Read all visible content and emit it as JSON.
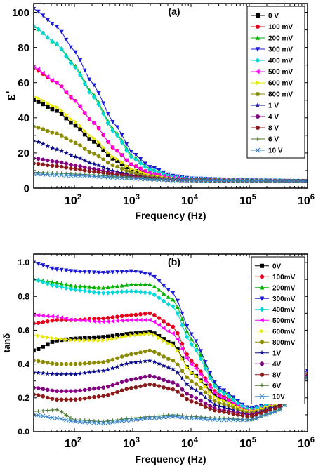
{
  "chart_data": [
    {
      "type": "line",
      "panel_label": "(a)",
      "xlabel": "Frequency (Hz)",
      "ylabel": "ε'",
      "xscale": "log",
      "xlim": [
        20,
        1000000
      ],
      "ylim": [
        0,
        105
      ],
      "x_ticks": [
        100,
        1000,
        10000,
        100000,
        1000000
      ],
      "x_tick_labels": [
        {
          "base": "10",
          "exp": "2"
        },
        {
          "base": "10",
          "exp": "3"
        },
        {
          "base": "10",
          "exp": "4"
        },
        {
          "base": "10",
          "exp": "5"
        },
        {
          "base": "10",
          "exp": "6"
        }
      ],
      "y_ticks": [
        0,
        20,
        40,
        60,
        80,
        100
      ],
      "y_tick_labels": [
        "0",
        "20",
        "40",
        "60",
        "80",
        "100"
      ],
      "legend_position": "top-right",
      "x": [
        20,
        50,
        100,
        200,
        500,
        1000,
        2000,
        5000,
        10000,
        100000,
        1000000
      ],
      "series": [
        {
          "name": "0 V",
          "color": "#000000",
          "marker": "square",
          "values": [
            50,
            44,
            36,
            27,
            16,
            10,
            7,
            5.2,
            4.8,
            4.2,
            4.0
          ]
        },
        {
          "name": "100 mV",
          "color": "#e8001c",
          "marker": "circle",
          "values": [
            68,
            60,
            50,
            38,
            22,
            13,
            8.5,
            5.8,
            5.0,
            4.3,
            4.0
          ]
        },
        {
          "name": "200 mV",
          "color": "#00b200",
          "marker": "triangle-up",
          "values": [
            92,
            82,
            70,
            54,
            32,
            18,
            11,
            6.5,
            5.4,
            4.4,
            4.1
          ]
        },
        {
          "name": "300 mV",
          "color": "#1b1bd6",
          "marker": "triangle-down",
          "values": [
            102,
            92,
            78,
            60,
            36,
            20,
            12,
            7,
            5.6,
            4.5,
            4.1
          ]
        },
        {
          "name": "400 mV",
          "color": "#00d8d8",
          "marker": "diamond",
          "values": [
            92,
            82,
            69,
            53,
            31,
            17,
            10.5,
            6.3,
            5.3,
            4.4,
            4.1
          ]
        },
        {
          "name": "500 mV",
          "color": "#ff00ff",
          "marker": "triangle-left",
          "values": [
            69,
            60,
            50,
            38,
            22,
            13,
            8.5,
            5.8,
            5.0,
            4.3,
            4.0
          ]
        },
        {
          "name": "600 mV",
          "color": "#e6e600",
          "marker": "triangle-right",
          "values": [
            52,
            46,
            38,
            29,
            17,
            10.5,
            7.2,
            5.3,
            4.9,
            4.2,
            4.0
          ]
        },
        {
          "name": "800 mV",
          "color": "#8b8b00",
          "marker": "circle",
          "values": [
            35,
            31,
            26,
            20,
            12.5,
            8.5,
            6.3,
            5.0,
            4.6,
            4.2,
            4.0
          ]
        },
        {
          "name": "1 V",
          "color": "#0a0a8a",
          "marker": "star",
          "values": [
            27,
            22,
            18,
            14,
            9.5,
            7.2,
            5.8,
            4.9,
            4.6,
            4.2,
            4.0
          ]
        },
        {
          "name": "4 V",
          "color": "#800080",
          "marker": "circle",
          "values": [
            17,
            15,
            13,
            11,
            8.5,
            6.8,
            5.6,
            4.8,
            4.5,
            4.1,
            4.0
          ]
        },
        {
          "name": "8 V",
          "color": "#8b1a1a",
          "marker": "circle",
          "values": [
            14,
            12.5,
            11,
            9.5,
            7.8,
            6.4,
            5.4,
            4.7,
            4.4,
            4.1,
            4.0
          ]
        },
        {
          "name": "6 V",
          "color": "#4b7b2b",
          "marker": "plus",
          "values": [
            9,
            8.5,
            8,
            7.5,
            6.5,
            5.8,
            5.2,
            4.6,
            4.4,
            4.1,
            4.0
          ]
        },
        {
          "name": "10 V",
          "color": "#3a84c8",
          "marker": "x",
          "values": [
            8,
            7.5,
            7,
            6.7,
            6,
            5.5,
            5.0,
            4.5,
            4.3,
            4.1,
            4.0
          ]
        }
      ]
    },
    {
      "type": "line",
      "panel_label": "(b)",
      "xlabel": "Frequency (Hz)",
      "ylabel": "tanδ",
      "xscale": "log",
      "xlim": [
        20,
        1000000
      ],
      "ylim": [
        0,
        1.05
      ],
      "x_ticks": [
        100,
        1000,
        10000,
        100000,
        1000000
      ],
      "x_tick_labels": [
        {
          "base": "10",
          "exp": "2"
        },
        {
          "base": "10",
          "exp": "3"
        },
        {
          "base": "10",
          "exp": "4"
        },
        {
          "base": "10",
          "exp": "5"
        },
        {
          "base": "10",
          "exp": "6"
        }
      ],
      "y_ticks": [
        0,
        0.2,
        0.4,
        0.6,
        0.8,
        1.0
      ],
      "y_tick_labels": [
        "0.0",
        "0.2",
        "0.4",
        "0.6",
        "0.8",
        "1.0"
      ],
      "legend_position": "top-right",
      "x": [
        20,
        50,
        100,
        300,
        1000,
        2000,
        5000,
        10000,
        30000,
        100000,
        300000,
        1000000
      ],
      "series": [
        {
          "name": "0V",
          "color": "#000000",
          "marker": "square",
          "values": [
            0.48,
            0.54,
            0.55,
            0.56,
            0.58,
            0.59,
            0.52,
            0.35,
            0.2,
            0.12,
            0.16,
            0.35
          ]
        },
        {
          "name": "100mV",
          "color": "#e8001c",
          "marker": "circle",
          "values": [
            0.64,
            0.66,
            0.66,
            0.67,
            0.69,
            0.7,
            0.62,
            0.42,
            0.22,
            0.13,
            0.17,
            0.35
          ]
        },
        {
          "name": "200mV",
          "color": "#00b200",
          "marker": "triangle-up",
          "values": [
            0.9,
            0.88,
            0.86,
            0.85,
            0.87,
            0.87,
            0.78,
            0.55,
            0.25,
            0.14,
            0.17,
            0.36
          ]
        },
        {
          "name": "300mV",
          "color": "#1b1bd6",
          "marker": "triangle-down",
          "values": [
            1.0,
            0.96,
            0.95,
            0.94,
            0.95,
            0.93,
            0.82,
            0.58,
            0.26,
            0.14,
            0.17,
            0.36
          ]
        },
        {
          "name": "400mV",
          "color": "#00d8d8",
          "marker": "diamond",
          "values": [
            0.9,
            0.86,
            0.84,
            0.82,
            0.83,
            0.82,
            0.74,
            0.52,
            0.24,
            0.13,
            0.17,
            0.35
          ]
        },
        {
          "name": "500mV",
          "color": "#ff00ff",
          "marker": "triangle-left",
          "values": [
            0.69,
            0.68,
            0.66,
            0.65,
            0.66,
            0.66,
            0.58,
            0.4,
            0.21,
            0.12,
            0.16,
            0.35
          ]
        },
        {
          "name": "600mV",
          "color": "#e6e600",
          "marker": "triangle-right",
          "values": [
            0.57,
            0.55,
            0.54,
            0.54,
            0.57,
            0.58,
            0.51,
            0.35,
            0.19,
            0.12,
            0.16,
            0.34
          ]
        },
        {
          "name": "800mV",
          "color": "#8b8b00",
          "marker": "circle",
          "values": [
            0.42,
            0.4,
            0.4,
            0.41,
            0.46,
            0.48,
            0.42,
            0.3,
            0.17,
            0.11,
            0.15,
            0.34
          ]
        },
        {
          "name": "1V",
          "color": "#0a0a8a",
          "marker": "star",
          "values": [
            0.35,
            0.34,
            0.34,
            0.36,
            0.41,
            0.42,
            0.37,
            0.26,
            0.15,
            0.1,
            0.15,
            0.33
          ]
        },
        {
          "name": "4V",
          "color": "#800080",
          "marker": "circle",
          "values": [
            0.26,
            0.24,
            0.24,
            0.26,
            0.31,
            0.33,
            0.29,
            0.21,
            0.13,
            0.1,
            0.14,
            0.33
          ]
        },
        {
          "name": "8V",
          "color": "#8b1a1a",
          "marker": "circle",
          "values": [
            0.22,
            0.19,
            0.19,
            0.21,
            0.26,
            0.28,
            0.25,
            0.18,
            0.12,
            0.09,
            0.14,
            0.32
          ]
        },
        {
          "name": "6V",
          "color": "#4b7b2b",
          "marker": "plus",
          "values": [
            0.12,
            0.13,
            0.07,
            0.06,
            0.08,
            0.09,
            0.1,
            0.09,
            0.08,
            0.07,
            0.12,
            0.32
          ]
        },
        {
          "name": "10V",
          "color": "#3a84c8",
          "marker": "x",
          "values": [
            0.1,
            0.08,
            0.06,
            0.05,
            0.07,
            0.08,
            0.09,
            0.08,
            0.07,
            0.07,
            0.12,
            0.32
          ]
        }
      ]
    }
  ]
}
